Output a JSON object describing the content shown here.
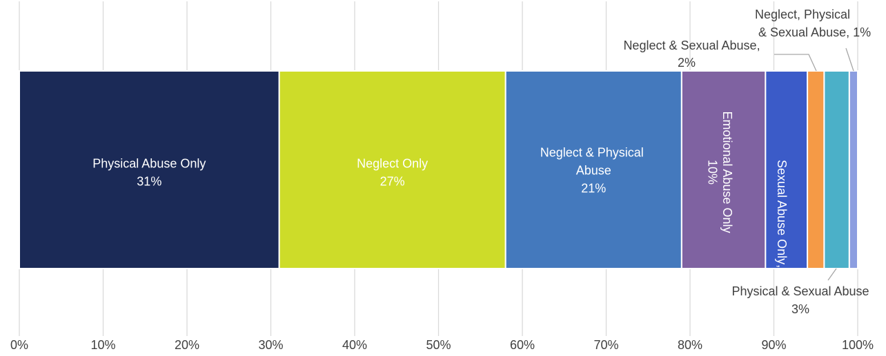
{
  "chart_data": {
    "type": "stacked-bar-100",
    "series": [
      {
        "name": "Physical Abuse Only",
        "color": "#1b2a57",
        "values": [
          31
        ],
        "value_labels": [
          "31%"
        ]
      },
      {
        "name": "Neglect Only",
        "color": "#cddc29",
        "values": [
          27
        ],
        "value_labels": [
          "27%"
        ]
      },
      {
        "name": "Neglect & Physical Abuse",
        "color": "#4479bd",
        "values": [
          21
        ],
        "value_labels": [
          "21%"
        ]
      },
      {
        "name": "Emotional Abuse Only",
        "color": "#7f62a1",
        "values": [
          10
        ],
        "value_labels": [
          "10%"
        ]
      },
      {
        "name": "Sexual Abuse Only",
        "color": "#3b5bc8",
        "values": [
          5
        ],
        "value_labels": [
          "5%"
        ]
      },
      {
        "name": "Neglect & Sexual Abuse",
        "color": "#f59a46",
        "values": [
          2
        ],
        "value_labels": [
          "2%"
        ]
      },
      {
        "name": "Physical & Sexual Abuse",
        "color": "#4bb0c8",
        "values": [
          3
        ],
        "value_labels": [
          "3%"
        ]
      },
      {
        "name": "Neglect, Physical & Sexual Abuse",
        "color": "#8c9ee0",
        "values": [
          1
        ],
        "value_labels": [
          "1%"
        ]
      }
    ],
    "xlim": [
      0,
      100
    ],
    "xticks": [
      {
        "value": 0,
        "label": "0%"
      },
      {
        "value": 10,
        "label": "10%"
      },
      {
        "value": 20,
        "label": "20%"
      },
      {
        "value": 30,
        "label": "30%"
      },
      {
        "value": 40,
        "label": "40%"
      },
      {
        "value": 50,
        "label": "50%"
      },
      {
        "value": 60,
        "label": "60%"
      },
      {
        "value": 70,
        "label": "70%"
      },
      {
        "value": 80,
        "label": "80%"
      },
      {
        "value": 90,
        "label": "90%"
      },
      {
        "value": 100,
        "label": "100%"
      }
    ],
    "grid": true
  }
}
